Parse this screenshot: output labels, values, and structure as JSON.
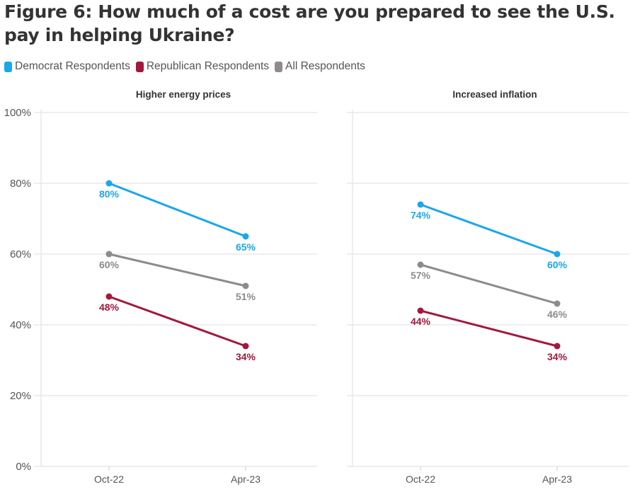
{
  "title": "Figure 6: How much of a cost are you prepared to see the U.S. pay in helping Ukraine?",
  "chart_data": [
    {
      "type": "line",
      "title": "Higher energy prices",
      "categories": [
        "Oct-22",
        "Apr-23"
      ],
      "ylim": [
        0,
        100
      ],
      "yticks": [
        "0%",
        "20%",
        "40%",
        "60%",
        "80%",
        "100%"
      ],
      "grid": true,
      "series": [
        {
          "name": "Democrat Respondents",
          "color": "#1aa7ec",
          "values": [
            80,
            65
          ]
        },
        {
          "name": "Republican Respondents",
          "color": "#a3183b",
          "values": [
            48,
            34
          ]
        },
        {
          "name": "All Respondents",
          "color": "#8f8a8c",
          "values": [
            60,
            51
          ]
        }
      ]
    },
    {
      "type": "line",
      "title": "Increased inflation",
      "categories": [
        "Oct-22",
        "Apr-23"
      ],
      "ylim": [
        0,
        100
      ],
      "grid": true,
      "series": [
        {
          "name": "Democrat Respondents",
          "color": "#1aa7ec",
          "values": [
            74,
            60
          ]
        },
        {
          "name": "Republican Respondents",
          "color": "#a3183b",
          "values": [
            44,
            34
          ]
        },
        {
          "name": "All Respondents",
          "color": "#8f8a8c",
          "values": [
            57,
            46
          ]
        }
      ]
    }
  ],
  "legend": [
    {
      "label": "Democrat Respondents",
      "color": "#1aa7ec"
    },
    {
      "label": "Republican Respondents",
      "color": "#a3183b"
    },
    {
      "label": "All Respondents",
      "color": "#8f8a8c"
    }
  ],
  "legend_position": "top-left"
}
